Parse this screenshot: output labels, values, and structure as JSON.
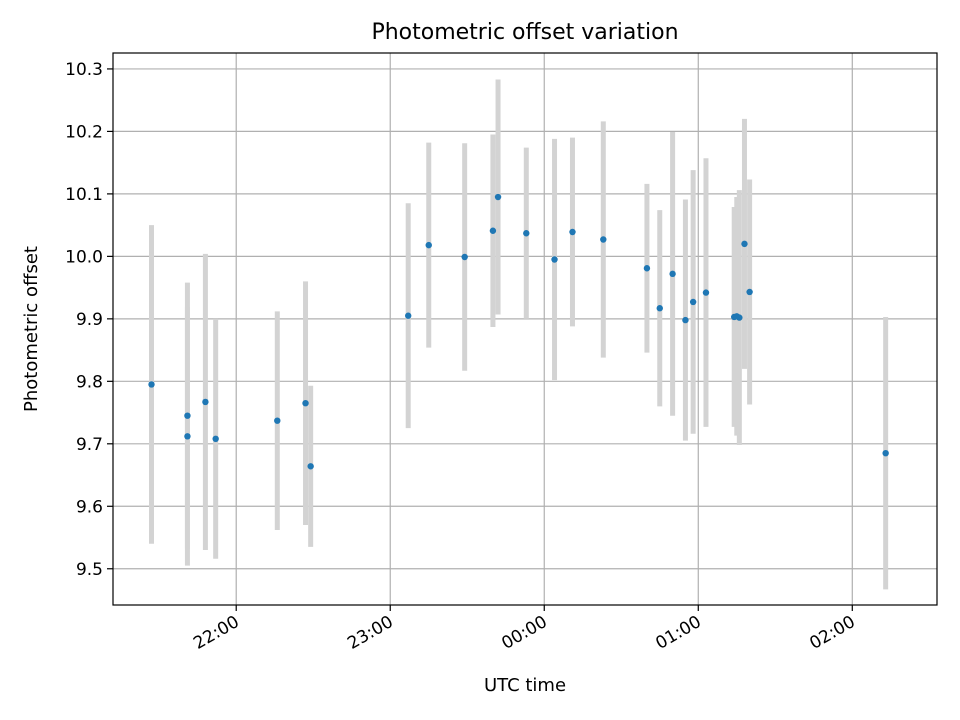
{
  "chart_data": {
    "type": "scatter",
    "title": "Photometric offset variation",
    "xlabel": "UTC time",
    "ylabel": "Photometric offset",
    "grid": true,
    "legend": "none",
    "colors": {
      "point": "#1f77b4",
      "errorbar": "#d3d3d3",
      "grid": "#b0b0b0"
    },
    "x_ticks": [
      "22:00",
      "23:00",
      "00:00",
      "01:00",
      "02:00"
    ],
    "y_ticks": [
      "9.5",
      "9.6",
      "9.7",
      "9.8",
      "9.9",
      "10.0",
      "10.1",
      "10.2",
      "10.3"
    ],
    "series": [
      {
        "points": [
          {
            "x": "21:27",
            "y": 9.795,
            "err": 0.255
          },
          {
            "x": "21:41",
            "y": 9.745,
            "err": 0.213
          },
          {
            "x": "21:41",
            "y": 9.712,
            "err": 0.207
          },
          {
            "x": "21:48",
            "y": 9.767,
            "err": 0.237
          },
          {
            "x": "21:52",
            "y": 9.708,
            "err": 0.192
          },
          {
            "x": "22:16",
            "y": 9.737,
            "err": 0.175
          },
          {
            "x": "22:27",
            "y": 9.765,
            "err": 0.195
          },
          {
            "x": "22:29",
            "y": 9.664,
            "err": 0.129
          },
          {
            "x": "23:07",
            "y": 9.905,
            "err": 0.18
          },
          {
            "x": "23:15",
            "y": 10.018,
            "err": 0.164
          },
          {
            "x": "23:29",
            "y": 9.999,
            "err": 0.182
          },
          {
            "x": "23:40",
            "y": 10.041,
            "err": 0.154
          },
          {
            "x": "23:42",
            "y": 10.095,
            "err": 0.188
          },
          {
            "x": "23:53",
            "y": 10.037,
            "err": 0.137
          },
          {
            "x": "00:04",
            "y": 9.995,
            "err": 0.193
          },
          {
            "x": "00:11",
            "y": 10.039,
            "err": 0.151
          },
          {
            "x": "00:23",
            "y": 10.027,
            "err": 0.189
          },
          {
            "x": "00:40",
            "y": 9.981,
            "err": 0.135
          },
          {
            "x": "00:45",
            "y": 9.917,
            "err": 0.157
          },
          {
            "x": "00:50",
            "y": 9.972,
            "err": 0.227
          },
          {
            "x": "00:55",
            "y": 9.898,
            "err": 0.193
          },
          {
            "x": "00:58",
            "y": 9.927,
            "err": 0.211
          },
          {
            "x": "01:03",
            "y": 9.942,
            "err": 0.215
          },
          {
            "x": "01:14",
            "y": 9.903,
            "err": 0.176
          },
          {
            "x": "01:15",
            "y": 9.904,
            "err": 0.191
          },
          {
            "x": "01:16",
            "y": 9.902,
            "err": 0.204
          },
          {
            "x": "01:18",
            "y": 10.02,
            "err": 0.2
          },
          {
            "x": "01:20",
            "y": 9.943,
            "err": 0.18
          },
          {
            "x": "02:13",
            "y": 9.685,
            "err": 0.218
          }
        ]
      }
    ]
  }
}
